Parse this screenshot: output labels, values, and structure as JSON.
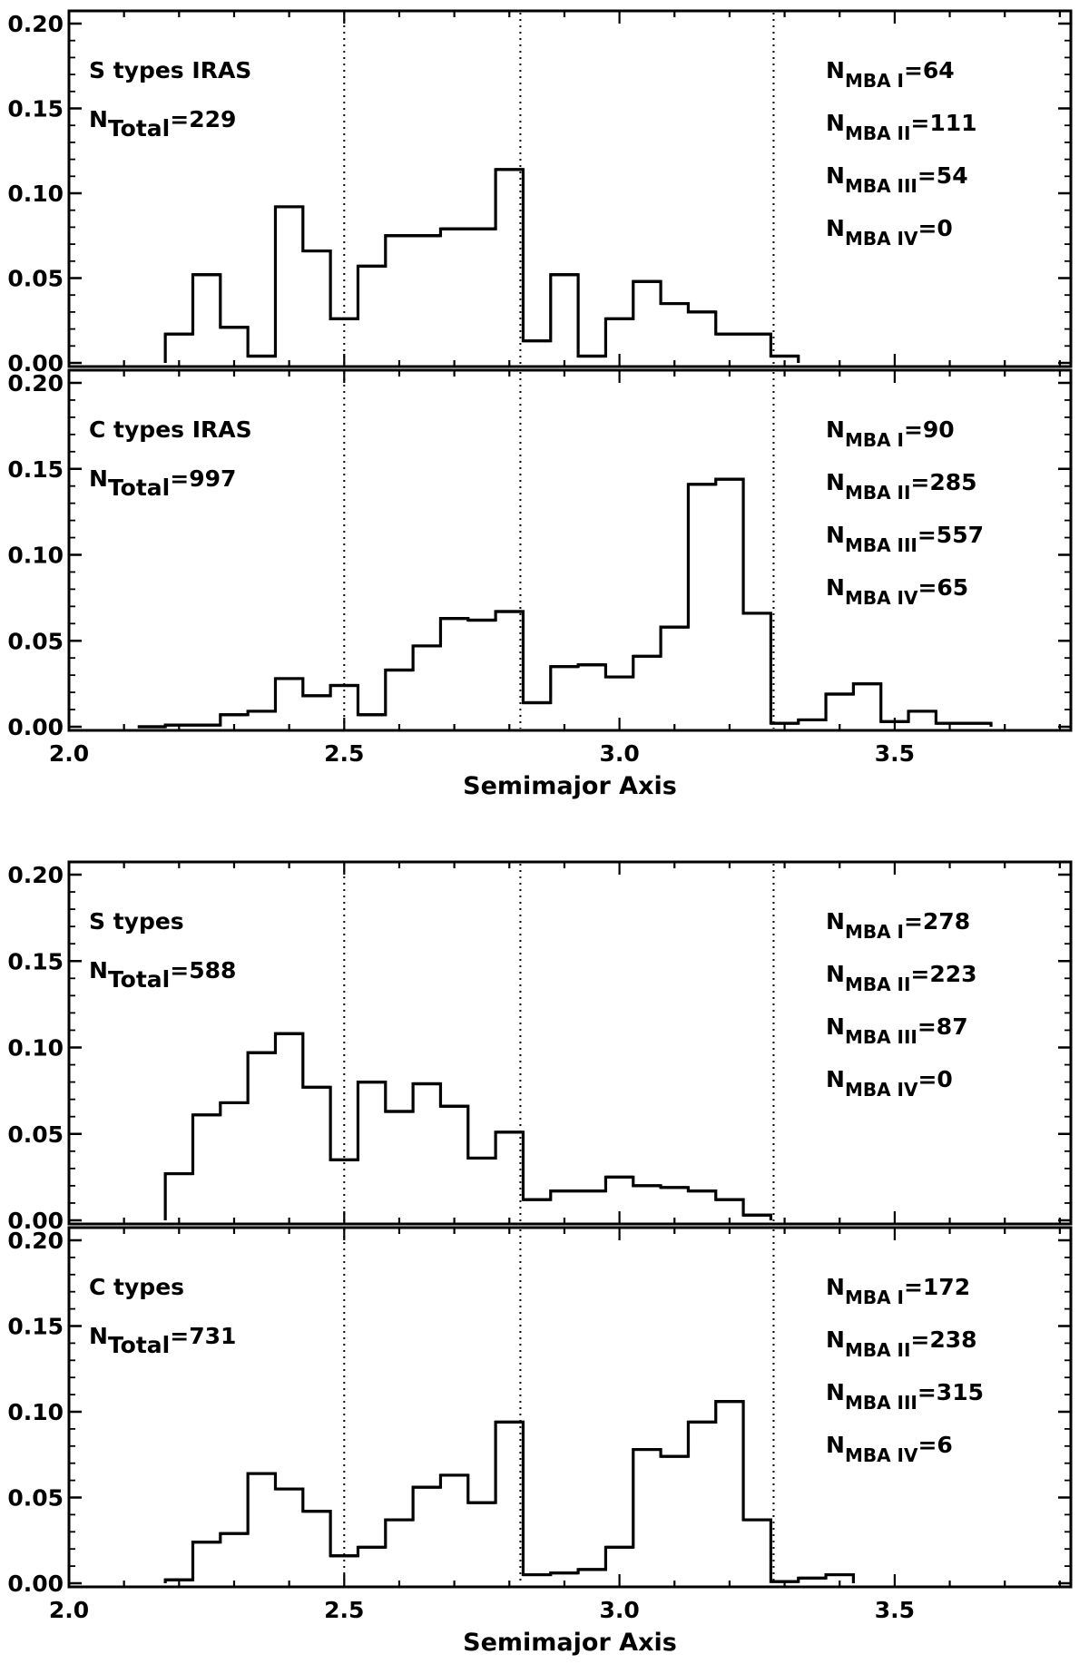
{
  "chart_data": [
    {
      "type": "histogram",
      "title": "",
      "label": "S types IRAS",
      "total": "=229",
      "xlim": [
        2.0,
        3.82
      ],
      "ylim": [
        0.0,
        0.2
      ],
      "bin_width": 0.05,
      "bin_start": 2.175,
      "values": [
        0.017,
        0.052,
        0.021,
        0.004,
        0.092,
        0.066,
        0.026,
        0.057,
        0.075,
        0.075,
        0.079,
        0.079,
        0.114,
        0.013,
        0.052,
        0.004,
        0.026,
        0.048,
        0.035,
        0.03,
        0.017,
        0.017,
        0.004
      ],
      "boundaries": [
        2.5,
        2.82,
        3.28
      ],
      "counts": [
        "=64",
        "=111",
        "=54",
        "=0"
      ],
      "yticks": [
        "0.00",
        "0.05",
        "0.10",
        "0.15",
        "0.20"
      ],
      "xticks": [],
      "xlabel": ""
    },
    {
      "type": "histogram",
      "title": "",
      "label": "C types IRAS",
      "total": "=997",
      "xlim": [
        2.0,
        3.82
      ],
      "ylim": [
        0.0,
        0.2
      ],
      "bin_width": 0.05,
      "bin_start": 2.125,
      "values": [
        0.0,
        0.001,
        0.001,
        0.007,
        0.009,
        0.028,
        0.018,
        0.024,
        0.007,
        0.033,
        0.047,
        0.063,
        0.062,
        0.067,
        0.014,
        0.035,
        0.036,
        0.029,
        0.041,
        0.058,
        0.141,
        0.144,
        0.066,
        0.002,
        0.004,
        0.019,
        0.025,
        0.003,
        0.009,
        0.002,
        0.002
      ],
      "boundaries": [
        2.5,
        2.82,
        3.28
      ],
      "counts": [
        "=90",
        "=285",
        "=557",
        "=65"
      ],
      "yticks": [
        "0.00",
        "0.05",
        "0.10",
        "0.15",
        "0.20"
      ],
      "xticks": [
        "2.0",
        "2.5",
        "3.0",
        "3.5"
      ],
      "xlabel": "Semimajor Axis"
    },
    {
      "type": "histogram",
      "title": "",
      "label": "S types",
      "total": "=588",
      "xlim": [
        2.0,
        3.82
      ],
      "ylim": [
        0.0,
        0.2
      ],
      "bin_width": 0.05,
      "bin_start": 2.175,
      "values": [
        0.027,
        0.061,
        0.068,
        0.097,
        0.108,
        0.077,
        0.035,
        0.08,
        0.063,
        0.079,
        0.066,
        0.036,
        0.051,
        0.012,
        0.017,
        0.017,
        0.025,
        0.02,
        0.019,
        0.017,
        0.012,
        0.003
      ],
      "boundaries": [
        2.5,
        2.82,
        3.28
      ],
      "counts": [
        "=278",
        "=223",
        "=87",
        "=0"
      ],
      "yticks": [
        "0.00",
        "0.05",
        "0.10",
        "0.15",
        "0.20"
      ],
      "xticks": [],
      "xlabel": ""
    },
    {
      "type": "histogram",
      "title": "",
      "label": "C types",
      "total": "=731",
      "xlim": [
        2.0,
        3.82
      ],
      "ylim": [
        0.0,
        0.2
      ],
      "bin_width": 0.05,
      "bin_start": 2.175,
      "values": [
        0.002,
        0.024,
        0.029,
        0.064,
        0.055,
        0.042,
        0.016,
        0.021,
        0.037,
        0.056,
        0.063,
        0.047,
        0.094,
        0.005,
        0.006,
        0.008,
        0.021,
        0.078,
        0.074,
        0.094,
        0.106,
        0.037,
        0.001,
        0.003,
        0.005
      ],
      "boundaries": [
        2.5,
        2.82,
        3.28
      ],
      "counts": [
        "=172",
        "=238",
        "=315",
        "=6"
      ],
      "yticks": [
        "0.00",
        "0.05",
        "0.10",
        "0.15",
        "0.20"
      ],
      "xticks": [
        "2.0",
        "2.5",
        "3.0",
        "3.5"
      ],
      "xlabel": "Semimajor Axis"
    }
  ],
  "labels": {
    "n": "N",
    "total_sub": "Total",
    "mba_sub": [
      "MBA I",
      "MBA II",
      "MBA III",
      "MBA IV"
    ]
  },
  "colors": {
    "line": "#000000",
    "background": "#ffffff"
  }
}
